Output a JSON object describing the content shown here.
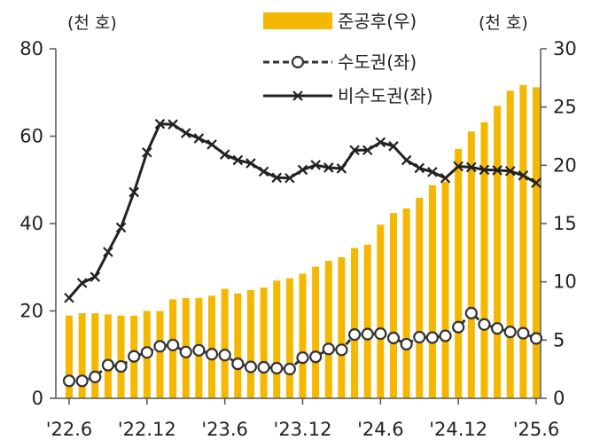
{
  "chart_data": {
    "type": "bar+line",
    "left_unit": "(천 호)",
    "right_unit": "(천 호)",
    "y_left": {
      "min": 0,
      "max": 80,
      "ticks": [
        0,
        20,
        40,
        60,
        80
      ]
    },
    "y_right": {
      "min": 0,
      "max": 30,
      "ticks": [
        0,
        5,
        10,
        15,
        20,
        25,
        30
      ]
    },
    "x_tick_labels": [
      "'22.6",
      "'22.12",
      "'23.6",
      "'23.12",
      "'24.6",
      "'24.12",
      "'25.6"
    ],
    "x_tick_indices": [
      0,
      6,
      12,
      18,
      24,
      30,
      36
    ],
    "months": 37,
    "series": [
      {
        "name": "준공후(우)",
        "type": "bar",
        "axis": "right",
        "color": "#f5b800",
        "values": [
          7.1,
          7.3,
          7.3,
          7.2,
          7.1,
          7.1,
          7.5,
          7.5,
          8.5,
          8.6,
          8.6,
          8.8,
          9.4,
          9.0,
          9.3,
          9.5,
          10.1,
          10.3,
          10.7,
          11.3,
          11.8,
          12.1,
          12.9,
          13.2,
          14.9,
          15.9,
          16.3,
          17.2,
          18.3,
          18.6,
          21.4,
          22.9,
          23.7,
          25.1,
          26.4,
          26.9,
          26.7
        ]
      },
      {
        "name": "수도권(좌)",
        "type": "line",
        "axis": "left",
        "style": "dashed-circle",
        "color": "#333333",
        "values": [
          4.0,
          4.0,
          4.9,
          7.6,
          7.3,
          9.6,
          10.5,
          11.9,
          12.2,
          10.6,
          11.0,
          10.1,
          9.9,
          7.9,
          7.2,
          7.1,
          6.9,
          6.7,
          9.3,
          9.5,
          11.3,
          11.1,
          14.6,
          14.7,
          14.8,
          13.8,
          12.4,
          14.0,
          13.9,
          14.3,
          16.3,
          19.5,
          16.9,
          16.0,
          15.2,
          14.9,
          13.7
        ]
      },
      {
        "name": "비수도권(좌)",
        "type": "line",
        "axis": "left",
        "style": "solid-x",
        "color": "#222222",
        "values": [
          23.0,
          26.4,
          27.8,
          33.5,
          39.1,
          47.2,
          56.3,
          62.8,
          62.7,
          60.7,
          59.5,
          58.1,
          55.8,
          54.5,
          53.8,
          51.9,
          50.5,
          50.4,
          52.3,
          53.4,
          52.8,
          52.6,
          56.8,
          56.8,
          58.6,
          57.7,
          54.5,
          52.7,
          51.8,
          50.4,
          53.1,
          52.9,
          52.3,
          52.2,
          52.0,
          51.0,
          49.3
        ]
      }
    ]
  }
}
